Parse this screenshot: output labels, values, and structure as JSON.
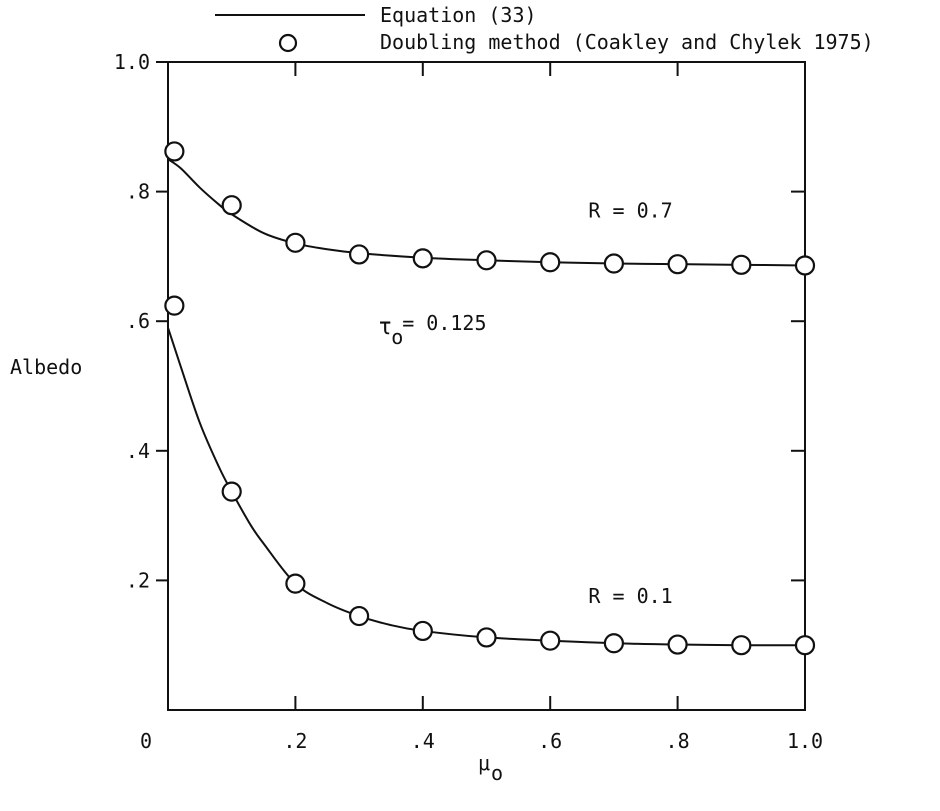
{
  "chart_data": {
    "type": "scatter",
    "xlabel": "μ",
    "xlabel_sub": "o",
    "ylabel": "Albedo",
    "xlim": [
      0,
      1.0
    ],
    "ylim": [
      0,
      1.0
    ],
    "x_ticks": [
      0,
      0.2,
      0.4,
      0.6,
      0.8,
      1.0
    ],
    "x_tick_labels": [
      "0",
      ".2",
      ".4",
      ".6",
      ".8",
      "1.0"
    ],
    "y_ticks": [
      0.2,
      0.4,
      0.6,
      0.8,
      1.0
    ],
    "y_tick_labels": [
      ".2",
      ".4",
      ".6",
      ".8",
      "1.0"
    ],
    "legend": [
      {
        "label": "Equation (33)",
        "marker": "line"
      },
      {
        "label": "Doubling method (Coakley and Chylek 1975)",
        "marker": "circle"
      }
    ],
    "legend_position": "top",
    "annotations": [
      {
        "text": "R = 0.7",
        "x": 0.66,
        "y": 0.76
      },
      {
        "text": "τ",
        "sub": "o",
        "value": " = 0.125",
        "x": 0.33,
        "y": 0.58
      },
      {
        "text": "R = 0.1",
        "x": 0.66,
        "y": 0.165
      }
    ],
    "series": [
      {
        "group": "R = 0.7",
        "points_x": [
          0.01,
          0.1,
          0.2,
          0.3,
          0.4,
          0.5,
          0.6,
          0.7,
          0.8,
          0.9,
          1.0
        ],
        "points_y": [
          0.862,
          0.779,
          0.721,
          0.703,
          0.697,
          0.694,
          0.691,
          0.689,
          0.688,
          0.687,
          0.686
        ],
        "curve_x": [
          0.0,
          0.02,
          0.05,
          0.08,
          0.1,
          0.15,
          0.2,
          0.25,
          0.3,
          0.4,
          0.5,
          0.6,
          0.7,
          0.8,
          0.9,
          1.0
        ],
        "curve_y": [
          0.85,
          0.836,
          0.806,
          0.78,
          0.765,
          0.736,
          0.72,
          0.711,
          0.705,
          0.698,
          0.694,
          0.691,
          0.689,
          0.688,
          0.687,
          0.686
        ]
      },
      {
        "group": "R = 0.1",
        "points_x": [
          0.01,
          0.1,
          0.2,
          0.3,
          0.4,
          0.5,
          0.6,
          0.7,
          0.8,
          0.9,
          1.0
        ],
        "points_y": [
          0.624,
          0.337,
          0.195,
          0.145,
          0.122,
          0.112,
          0.107,
          0.103,
          0.101,
          0.1,
          0.1
        ],
        "curve_x": [
          0.0,
          0.02,
          0.05,
          0.08,
          0.1,
          0.13,
          0.15,
          0.2,
          0.25,
          0.3,
          0.35,
          0.4,
          0.5,
          0.6,
          0.7,
          0.8,
          0.9,
          1.0
        ],
        "curve_y": [
          0.59,
          0.53,
          0.443,
          0.375,
          0.337,
          0.285,
          0.257,
          0.195,
          0.165,
          0.145,
          0.131,
          0.122,
          0.112,
          0.107,
          0.103,
          0.101,
          0.1,
          0.1
        ]
      }
    ]
  }
}
